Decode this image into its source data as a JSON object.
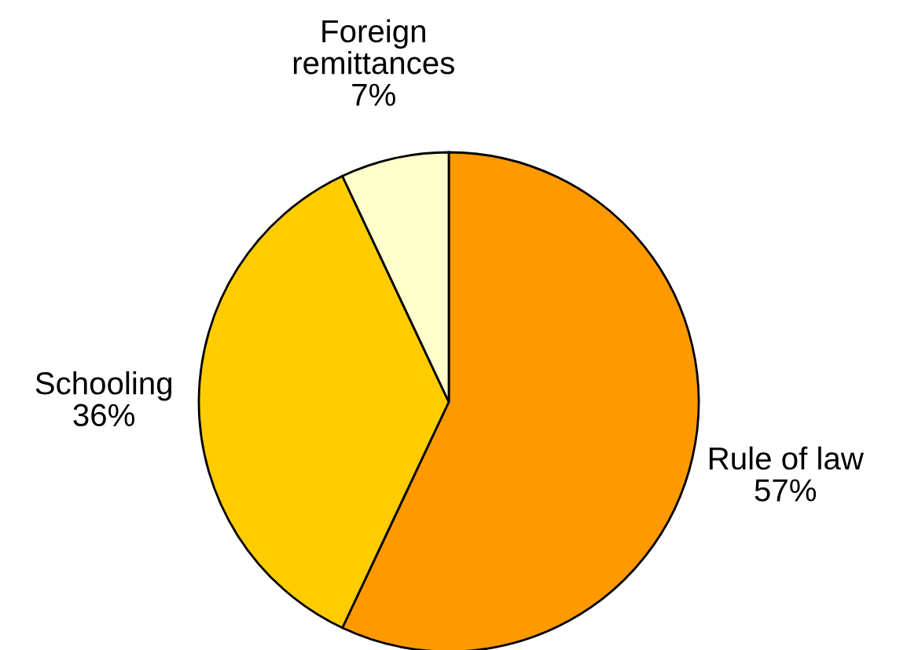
{
  "chart_data": {
    "type": "pie",
    "categories": [
      "Rule of law",
      "Schooling",
      "Foreign\nremittances"
    ],
    "values": [
      57,
      36,
      7
    ],
    "colors": [
      "#ff9900",
      "#ffcc00",
      "#ffffcc"
    ],
    "value_labels": [
      "57%",
      "36%",
      "7%"
    ]
  }
}
